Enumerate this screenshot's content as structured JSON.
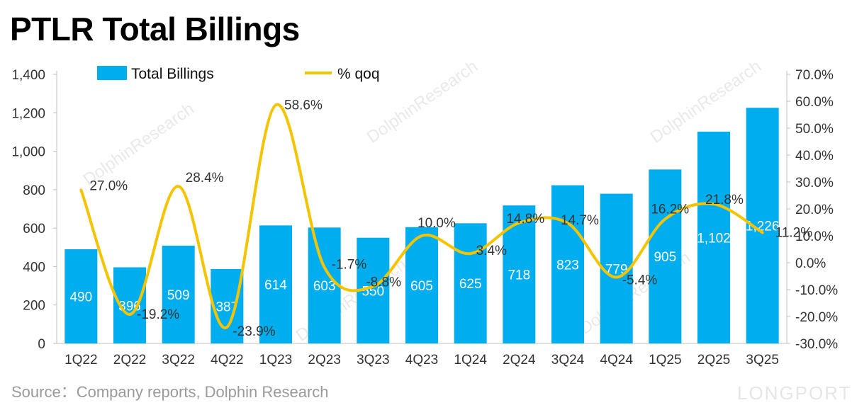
{
  "title": "PTLR Total Billings",
  "source": "Source：Company reports, Dolphin Research",
  "watermark": "LONGPORT",
  "background_watermark": "DolphinResearch",
  "colors": {
    "bar": "#00AEEF",
    "line": "#F5C400"
  },
  "chart_data": {
    "type": "bar",
    "title": "PTLR Total Billings",
    "categories": [
      "1Q22",
      "2Q22",
      "3Q22",
      "4Q22",
      "1Q23",
      "2Q23",
      "3Q23",
      "4Q23",
      "1Q24",
      "2Q24",
      "3Q24",
      "4Q24",
      "1Q25",
      "2Q25",
      "3Q25"
    ],
    "series": [
      {
        "name": "Total Billings",
        "type": "bar",
        "axis": "left",
        "values": [
          490,
          396,
          509,
          387,
          614,
          603,
          550,
          605,
          625,
          718,
          823,
          779,
          905,
          1102,
          1226
        ],
        "labels": [
          "490",
          "396",
          "509",
          "387",
          "614",
          "603",
          "550",
          "605",
          "625",
          "718",
          "823",
          "779",
          "905",
          "1,102",
          "1,226"
        ]
      },
      {
        "name": "% qoq",
        "type": "line",
        "axis": "right",
        "values": [
          27.0,
          -19.2,
          28.4,
          -23.9,
          58.6,
          -1.7,
          -8.8,
          10.0,
          3.4,
          14.8,
          14.7,
          -5.4,
          16.2,
          21.8,
          11.2
        ],
        "labels": [
          "27.0%",
          "-19.2%",
          "28.4%",
          "-23.9%",
          "58.6%",
          "-1.7%",
          "-8.8%",
          "10.0%",
          "3.4%",
          "14.8%",
          "14.7%",
          "-5.4%",
          "16.2%",
          "21.8%",
          "11.2%"
        ]
      }
    ],
    "y_left": {
      "range": [
        0,
        1400
      ],
      "ticks": [
        "0",
        "200",
        "400",
        "600",
        "800",
        "1,000",
        "1,200",
        "1,400"
      ]
    },
    "y_right": {
      "range": [
        -30,
        70
      ],
      "ticks": [
        "-30.0%",
        "-20.0%",
        "-10.0%",
        "0.0%",
        "10.0%",
        "20.0%",
        "30.0%",
        "40.0%",
        "50.0%",
        "60.0%",
        "70.0%"
      ]
    },
    "legend": [
      "Total Billings",
      "% qoq"
    ],
    "legend_position": "top",
    "grid": false
  }
}
